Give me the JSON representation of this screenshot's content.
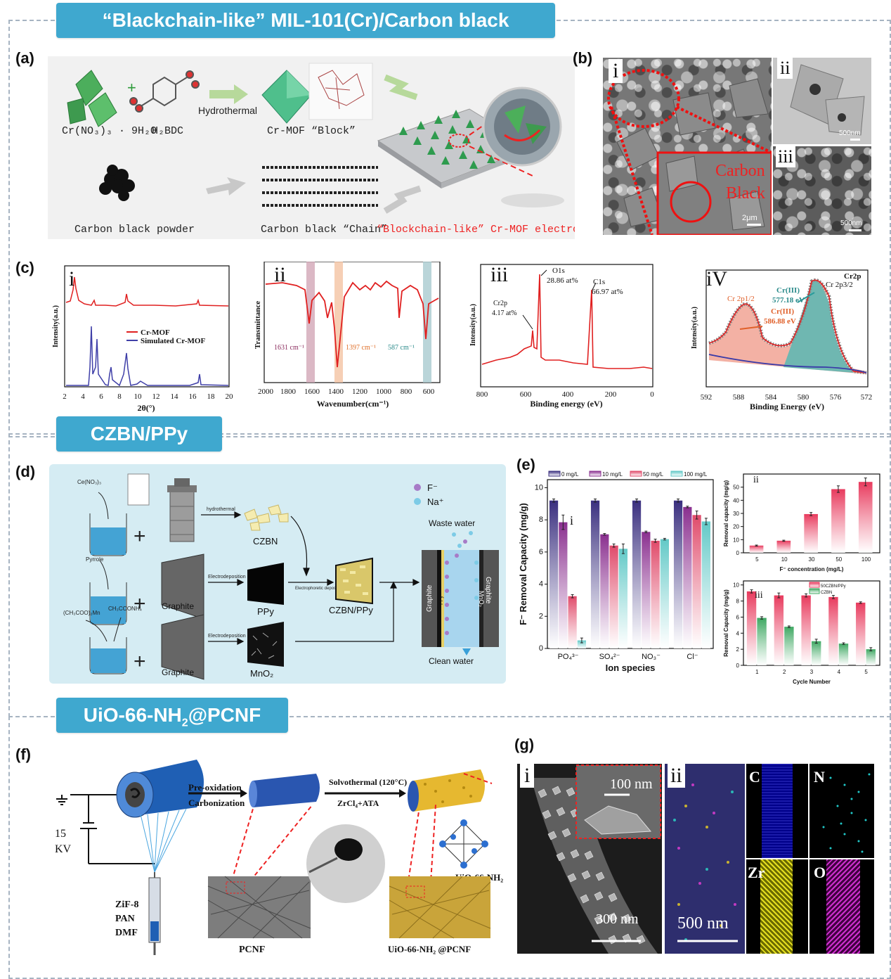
{
  "sections": {
    "s1": {
      "banner": "“Blackchain-like” MIL-101(Cr)/Carbon black"
    },
    "s2": {
      "banner": "CZBN/PPy"
    },
    "s3": {
      "banner_main": "UiO-66-NH",
      "banner_sub": "2",
      "banner_tail": "@PCNF"
    }
  },
  "labels": {
    "a": "(a)",
    "b": "(b)",
    "c": "(c)",
    "d": "(d)",
    "e": "(e)",
    "f": "(f)",
    "g": "(g)"
  },
  "panel_a": {
    "reactant1": "Cr(NO₃)₃ · 9H₂O",
    "reactant2": "H₂BDC",
    "hydrothermal": "Hydrothermal",
    "mof_block": "Cr-MOF “Block”",
    "carbon_powder": "Carbon black powder",
    "carbon_chain": "Carbon black “Chain”",
    "electrode": "“Blockchain-like” Cr-MOF electrode"
  },
  "panel_b": {
    "i": "i",
    "ii": "ii",
    "iii": "iii",
    "carbon_black_1": "Carbon",
    "carbon_black_2": "Black",
    "scale_i": "2μm",
    "scale_ii": "500nm",
    "scale_iii": "500nm"
  },
  "panel_c": {
    "i": {
      "label": "i",
      "ylabel": "Intensity(a.u.)",
      "xlabel": "2θ(°)",
      "legend": [
        "Cr-MOF",
        "Simulated Cr-MOF"
      ],
      "xticks": [
        "2",
        "4",
        "6",
        "8",
        "10",
        "12",
        "14",
        "16",
        "18",
        "20"
      ]
    },
    "ii": {
      "label": "ii",
      "ylabel": "Transmittance",
      "xlabel": "Wavenumber(cm⁻¹)",
      "bands": [
        "1631 cm⁻¹",
        "1397 cm⁻¹",
        "587 cm⁻¹"
      ],
      "xticks": [
        "2000",
        "1800",
        "1600",
        "1400",
        "1200",
        "1000",
        "800",
        "600"
      ]
    },
    "iii": {
      "label": "iii",
      "ylabel": "Intensity(a.u.)",
      "xlabel": "Binding energy (eV)",
      "peaks": [
        {
          "name": "O1s",
          "value": "28.86 at%"
        },
        {
          "name": "C1s",
          "value": "66.97 at%"
        },
        {
          "name": "Cr2p",
          "value": "4.17 at%"
        }
      ],
      "xticks": [
        "800",
        "600",
        "400",
        "200",
        "0"
      ]
    },
    "iv": {
      "label": "iV",
      "ylabel": "Intensity(a.u.)",
      "xlabel": "Binding Energy (eV)",
      "cr2p": "Cr2p",
      "cr2p32": "Cr 2p3/2",
      "cr2p12": "Cr 2p1/2",
      "cr3_a": "Cr(III)",
      "cr3_a_val": "577.18 eV",
      "cr3_b": "Cr(III)",
      "cr3_b_val": "586.88 eV",
      "xticks": [
        "592",
        "588",
        "584",
        "580",
        "576",
        "572"
      ]
    }
  },
  "panel_d": {
    "f_ion": "F⁻",
    "na_ion": "Na⁺",
    "waste": "Waste water",
    "clean": "Clean water",
    "czbn": "CZBN",
    "ppy": "PPy",
    "czbn_ppy": "CZBN/PPy",
    "graphite1": "Graphite",
    "graphite2": "Graphite",
    "mno2": "MnO₂",
    "hydrothermal": "hydrothermal",
    "electrodeposition1": "Electrodeposition",
    "electrodeposition2": "Electrodeposition",
    "electrophoretic": "Electrophoretic deposition",
    "ce": "Ce(NO₃)₃",
    "pyrrole": "Pyrrole",
    "mn": "(CH₃COO)₂Mn",
    "nh4": "CH₃COONH₄",
    "cell_left": "Graphite",
    "cell_ppy": "PPy",
    "cell_right": "Graphite",
    "cell_mno2": "MnO₂"
  },
  "chart_data": [
    {
      "type": "bar",
      "id": "e-i",
      "label": "i",
      "ylabel": "F⁻ Removal Capacity (mg/g)",
      "xlabel": "Ion species",
      "categories": [
        "PO₄³⁻",
        "SO₄²⁻",
        "NO₃⁻",
        "Cl⁻"
      ],
      "series": [
        {
          "name": "0 mg/L",
          "values": [
            9.2,
            9.2,
            9.2,
            9.2
          ],
          "errors": [
            0.1,
            0.1,
            0.1,
            0.1
          ]
        },
        {
          "name": "10 mg/L",
          "values": [
            7.85,
            7.1,
            7.25,
            8.8
          ],
          "errors": [
            0.45,
            0.05,
            0.05,
            0.05
          ]
        },
        {
          "name": "50 mg/L",
          "values": [
            3.25,
            6.4,
            6.7,
            8.3
          ],
          "errors": [
            0.1,
            0.1,
            0.1,
            0.25
          ]
        },
        {
          "name": "100 mg/L",
          "values": [
            0.5,
            6.2,
            6.8,
            7.9
          ],
          "errors": [
            0.15,
            0.3,
            0.05,
            0.2
          ]
        }
      ],
      "ylim": [
        0,
        10.5
      ],
      "yticks": [
        0,
        2,
        4,
        6,
        8,
        10
      ],
      "colors": [
        "#3a2f7f",
        "#8a2f8f",
        "#e04a6a",
        "#62c9c7"
      ]
    },
    {
      "type": "bar",
      "id": "e-ii",
      "label": "ii",
      "ylabel": "Removal capacity (mg/g)",
      "xlabel": "F⁻ concentration (mg/L)",
      "categories": [
        "5",
        "10",
        "30",
        "50",
        "100"
      ],
      "values": [
        5.5,
        9.2,
        29.5,
        48.5,
        54
      ],
      "errors": [
        0.4,
        0.4,
        1.2,
        2.5,
        3
      ],
      "ylim": [
        0,
        60
      ],
      "yticks": [
        0,
        10,
        20,
        30,
        40,
        50
      ],
      "colors": [
        "#e83a5d"
      ]
    },
    {
      "type": "bar",
      "id": "e-iii",
      "label": "iii",
      "ylabel": "Removal Capacity (mg/g)",
      "xlabel": "Cycle Number",
      "categories": [
        "1",
        "2",
        "3",
        "4",
        "5"
      ],
      "series": [
        {
          "name": "50CZBN/PPy",
          "values": [
            9.2,
            8.7,
            8.7,
            8.5,
            7.8
          ],
          "errors": [
            0.2,
            0.3,
            0.2,
            0.2,
            0.1
          ]
        },
        {
          "name": "CZBN",
          "values": [
            5.9,
            4.8,
            3.0,
            2.7,
            2.0
          ],
          "errors": [
            0.15,
            0.1,
            0.25,
            0.1,
            0.2
          ]
        }
      ],
      "ylim": [
        0,
        10.5
      ],
      "yticks": [
        0,
        2,
        4,
        6,
        8,
        10
      ],
      "colors": [
        "#e83a5d",
        "#3ea862"
      ]
    }
  ],
  "panel_f": {
    "kv1": "15",
    "kv2": "KV",
    "syringe1": "ZiF-8",
    "syringe2": "PAN",
    "syringe3": "DMF",
    "step1a": "Pre-oxidation",
    "step1b": "Carbonization",
    "step2a": "Solvothermal (120°C)",
    "step2b": "ZrCl₄+ATA",
    "uio": "UiO-66-NH₂",
    "pcnf": "PCNF",
    "uio_pcnf": "UiO-66-NH₂ @PCNF"
  },
  "panel_g": {
    "i": "i",
    "ii": "ii",
    "scale_inset": "100 nm",
    "scale_main": "300 nm",
    "scale_ii": "500 nm",
    "C": "C",
    "N": "N",
    "Zr": "Zr",
    "O": "O"
  }
}
